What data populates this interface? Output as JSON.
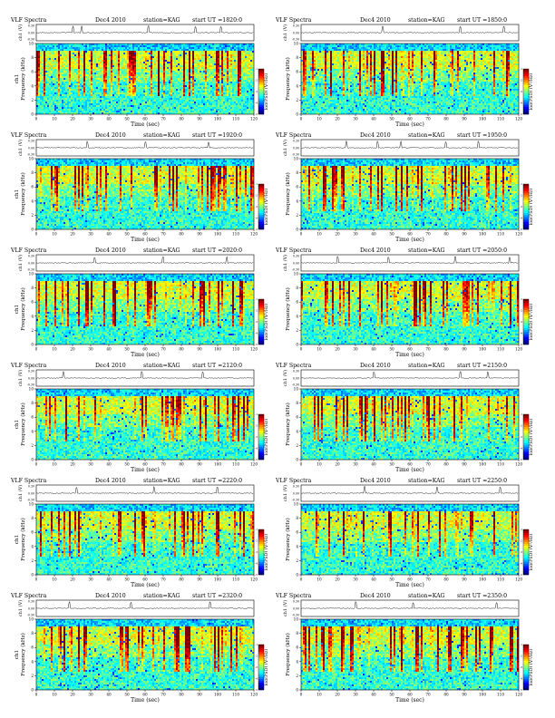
{
  "page": {
    "header_left": "VLF Spectra",
    "date": "Dec4 2010",
    "station": "station=KAG",
    "time_label": "Time  (sec)",
    "cb_label": "log(PSD) (V²/Hz)",
    "ch_label": "ch1 (V)",
    "freq_label_left": "ch1\nFrequency  (kHz)",
    "freq_label_right": "Frequency  (kHz)",
    "top_yticks": [
      "0.30",
      "0.00",
      "-0.30"
    ],
    "cb_ticks": [
      "-1",
      "-2",
      "-3",
      "-4",
      "-5"
    ]
  },
  "chart_data": [
    {
      "type": "heatmap",
      "title": "VLF Spectra   Dec4 2010   station=KAG   start UT =1820:0",
      "start_ut": "start UT =1820:0",
      "xlabel": "Time  (sec)",
      "ylabel": "Frequency  (kHz)",
      "xlim": [
        0,
        120
      ],
      "ylim": [
        0,
        10
      ],
      "xticks": [
        0,
        10,
        20,
        30,
        40,
        50,
        60,
        70,
        80,
        90,
        100,
        110,
        120
      ],
      "yticks": [
        0,
        2,
        4,
        6,
        8,
        10
      ],
      "colorbar_label": "log(PSD) (V²/Hz)",
      "spikes": [
        20,
        25,
        62,
        88,
        102
      ]
    },
    {
      "type": "heatmap",
      "title": "VLF Spectra   Dec4 2010   station=KAG   start UT =1850:0",
      "start_ut": "start UT =1850:0",
      "xlabel": "Time  (sec)",
      "ylabel": "Frequency  (kHz)",
      "xlim": [
        0,
        120
      ],
      "ylim": [
        0,
        10
      ],
      "xticks": [
        0,
        10,
        20,
        30,
        40,
        50,
        60,
        70,
        80,
        90,
        100,
        110,
        120
      ],
      "yticks": [
        0,
        2,
        4,
        6,
        8,
        10
      ],
      "colorbar_label": "log(PSD) (V²/Hz)",
      "spikes": [
        45,
        88,
        112
      ]
    },
    {
      "type": "heatmap",
      "title": "VLF Spectra   Dec4 2010   station=KAG   start UT =1920:0",
      "start_ut": "start UT =1920:0",
      "xlabel": "Time  (sec)",
      "ylabel": "Frequency  (kHz)",
      "xlim": [
        0,
        120
      ],
      "ylim": [
        0,
        10
      ],
      "xticks": [
        0,
        10,
        20,
        30,
        40,
        50,
        60,
        70,
        80,
        90,
        100,
        110,
        120
      ],
      "yticks": [
        0,
        2,
        4,
        6,
        8,
        10
      ],
      "colorbar_label": "log(PSD) (V²/Hz)",
      "spikes": [
        28,
        60,
        95
      ]
    },
    {
      "type": "heatmap",
      "title": "VLF Spectra   Dec4 2010   station=KAG   start UT =1950:0",
      "start_ut": "start UT =1950:0",
      "xlabel": "Time  (sec)",
      "ylabel": "Frequency  (kHz)",
      "xlim": [
        0,
        120
      ],
      "ylim": [
        0,
        10
      ],
      "xticks": [
        0,
        10,
        20,
        30,
        40,
        50,
        60,
        70,
        80,
        90,
        100,
        110,
        120
      ],
      "yticks": [
        0,
        2,
        4,
        6,
        8,
        10
      ],
      "colorbar_label": "log(PSD) (V²/Hz)",
      "spikes": [
        25,
        42,
        55,
        80,
        98
      ]
    },
    {
      "type": "heatmap",
      "title": "VLF Spectra   Dec4 2010   station=KAG   start UT =2020:0",
      "start_ut": "start UT =2020:0",
      "xlabel": "Time  (sec)",
      "ylabel": "Frequency  (kHz)",
      "xlim": [
        0,
        120
      ],
      "ylim": [
        0,
        10
      ],
      "xticks": [
        0,
        10,
        20,
        30,
        40,
        50,
        60,
        70,
        80,
        90,
        100,
        110,
        120
      ],
      "yticks": [
        0,
        2,
        4,
        6,
        8,
        10
      ],
      "colorbar_label": "log(PSD) (V²/Hz)",
      "spikes": [
        32,
        70,
        105
      ]
    },
    {
      "type": "heatmap",
      "title": "VLF Spectra   Dec4 2010   station=KAG   start UT =2050:0",
      "start_ut": "start UT =2050:0",
      "xlabel": "Time  (sec)",
      "ylabel": "Frequency  (kHz)",
      "xlim": [
        0,
        120
      ],
      "ylim": [
        0,
        10
      ],
      "xticks": [
        0,
        10,
        20,
        30,
        40,
        50,
        60,
        70,
        80,
        90,
        100,
        110,
        120
      ],
      "yticks": [
        0,
        2,
        4,
        6,
        8,
        10
      ],
      "colorbar_label": "log(PSD) (V²/Hz)",
      "spikes": [
        20,
        48,
        85,
        115
      ]
    },
    {
      "type": "heatmap",
      "title": "VLF Spectra   Dec4 2010   station=KAG   start UT =2120:0",
      "start_ut": "start UT =2120:0",
      "xlabel": "Time  (sec)",
      "ylabel": "Frequency  (kHz)",
      "xlim": [
        0,
        120
      ],
      "ylim": [
        0,
        10
      ],
      "xticks": [
        0,
        10,
        20,
        30,
        40,
        50,
        60,
        70,
        80,
        90,
        100,
        110,
        120
      ],
      "yticks": [
        0,
        2,
        4,
        6,
        8,
        10
      ],
      "colorbar_label": "log(PSD) (V²/Hz)",
      "spikes": [
        15,
        58,
        92
      ]
    },
    {
      "type": "heatmap",
      "title": "VLF Spectra   Dec4 2010   station=KAG   start UT =2150:0",
      "start_ut": "start UT =2150:0",
      "xlabel": "Time  (sec)",
      "ylabel": "Frequency  (kHz)",
      "xlim": [
        0,
        120
      ],
      "ylim": [
        0,
        10
      ],
      "xticks": [
        0,
        10,
        20,
        30,
        40,
        50,
        60,
        70,
        80,
        90,
        100,
        110,
        120
      ],
      "yticks": [
        0,
        2,
        4,
        6,
        8,
        10
      ],
      "colorbar_label": "log(PSD) (V²/Hz)",
      "spikes": [
        40,
        88,
        103
      ]
    },
    {
      "type": "heatmap",
      "title": "VLF Spectra   Dec4 2010   station=KAG   start UT =2220:0",
      "start_ut": "start UT =2220:0",
      "xlabel": "Time  (sec)",
      "ylabel": "Frequency  (kHz)",
      "xlim": [
        0,
        120
      ],
      "ylim": [
        0,
        10
      ],
      "xticks": [
        0,
        10,
        20,
        30,
        40,
        50,
        60,
        70,
        80,
        90,
        100,
        110,
        120
      ],
      "yticks": [
        0,
        2,
        4,
        6,
        8,
        10
      ],
      "colorbar_label": "log(PSD) (V²/Hz)",
      "spikes": [
        22,
        65,
        100
      ]
    },
    {
      "type": "heatmap",
      "title": "VLF Spectra   Dec4 2010   station=KAG   start UT =2250:0",
      "start_ut": "start UT =2250:0",
      "xlabel": "Time  (sec)",
      "ylabel": "Frequency  (kHz)",
      "xlim": [
        0,
        120
      ],
      "ylim": [
        0,
        10
      ],
      "xticks": [
        0,
        10,
        20,
        30,
        40,
        50,
        60,
        70,
        80,
        90,
        100,
        110,
        120
      ],
      "yticks": [
        0,
        2,
        4,
        6,
        8,
        10
      ],
      "colorbar_label": "log(PSD) (V²/Hz)",
      "spikes": [
        35,
        75,
        110
      ]
    },
    {
      "type": "heatmap",
      "title": "VLF Spectra   Dec4 2010   station=KAG   start UT =2320:0",
      "start_ut": "start UT =2320:0",
      "xlabel": "Time  (sec)",
      "ylabel": "Frequency  (kHz)",
      "xlim": [
        0,
        120
      ],
      "ylim": [
        0,
        10
      ],
      "xticks": [
        0,
        10,
        20,
        30,
        40,
        50,
        60,
        70,
        80,
        90,
        100,
        110,
        120
      ],
      "yticks": [
        0,
        2,
        4,
        6,
        8,
        10
      ],
      "colorbar_label": "log(PSD) (V²/Hz)",
      "spikes": [
        18,
        52,
        96
      ]
    },
    {
      "type": "heatmap",
      "title": "VLF Spectra   Dec4 2010   station=KAG   start UT =2350:0",
      "start_ut": "start UT =2350:0",
      "xlabel": "Time  (sec)",
      "ylabel": "Frequency  (kHz)",
      "xlim": [
        0,
        120
      ],
      "ylim": [
        0,
        10
      ],
      "xticks": [
        0,
        10,
        20,
        30,
        40,
        50,
        60,
        70,
        80,
        90,
        100,
        110,
        120
      ],
      "yticks": [
        0,
        2,
        4,
        6,
        8,
        10
      ],
      "colorbar_label": "log(PSD) (V²/Hz)",
      "spikes": [
        30,
        62,
        108
      ]
    }
  ]
}
